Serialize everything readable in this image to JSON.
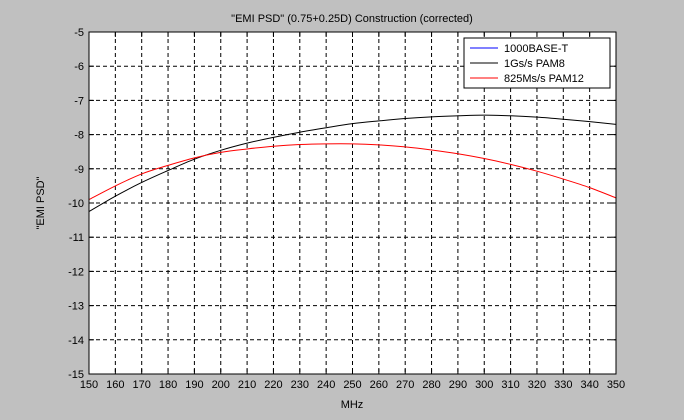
{
  "chart_data": {
    "type": "line",
    "title": "\"EMI PSD\" (0.75+0.25D) Construction (corrected)",
    "xlabel": "MHz",
    "ylabel": "\"EMI PSD\"",
    "xlim": [
      150,
      350
    ],
    "ylim": [
      -15,
      -5
    ],
    "xticks": [
      150,
      160,
      170,
      180,
      190,
      200,
      210,
      220,
      230,
      240,
      250,
      260,
      270,
      280,
      290,
      300,
      310,
      320,
      330,
      340,
      350
    ],
    "yticks": [
      -5,
      -6,
      -7,
      -8,
      -9,
      -10,
      -11,
      -12,
      -13,
      -14,
      -15
    ],
    "grid": true,
    "legend_position": "top-right",
    "series": [
      {
        "name": "1000BASE-T",
        "color": "#0000ff",
        "x": [],
        "y": []
      },
      {
        "name": "1Gs/s PAM8",
        "color": "#000000",
        "x": [
          150,
          160,
          170,
          180,
          190,
          200,
          210,
          220,
          230,
          240,
          250,
          260,
          270,
          280,
          290,
          300,
          310,
          320,
          330,
          340,
          350
        ],
        "y": [
          -10.25,
          -9.8,
          -9.4,
          -9.05,
          -8.72,
          -8.46,
          -8.25,
          -8.08,
          -7.93,
          -7.8,
          -7.68,
          -7.6,
          -7.53,
          -7.48,
          -7.45,
          -7.43,
          -7.45,
          -7.49,
          -7.55,
          -7.62,
          -7.7
        ]
      },
      {
        "name": "825Ms/s PAM12",
        "color": "#ff0000",
        "x": [
          150,
          160,
          170,
          180,
          190,
          200,
          210,
          220,
          230,
          240,
          250,
          260,
          270,
          280,
          290,
          300,
          310,
          320,
          330,
          340,
          350
        ],
        "y": [
          -9.9,
          -9.5,
          -9.15,
          -8.9,
          -8.68,
          -8.52,
          -8.42,
          -8.34,
          -8.29,
          -8.27,
          -8.27,
          -8.3,
          -8.36,
          -8.45,
          -8.56,
          -8.7,
          -8.87,
          -9.07,
          -9.3,
          -9.55,
          -9.85
        ]
      }
    ]
  }
}
